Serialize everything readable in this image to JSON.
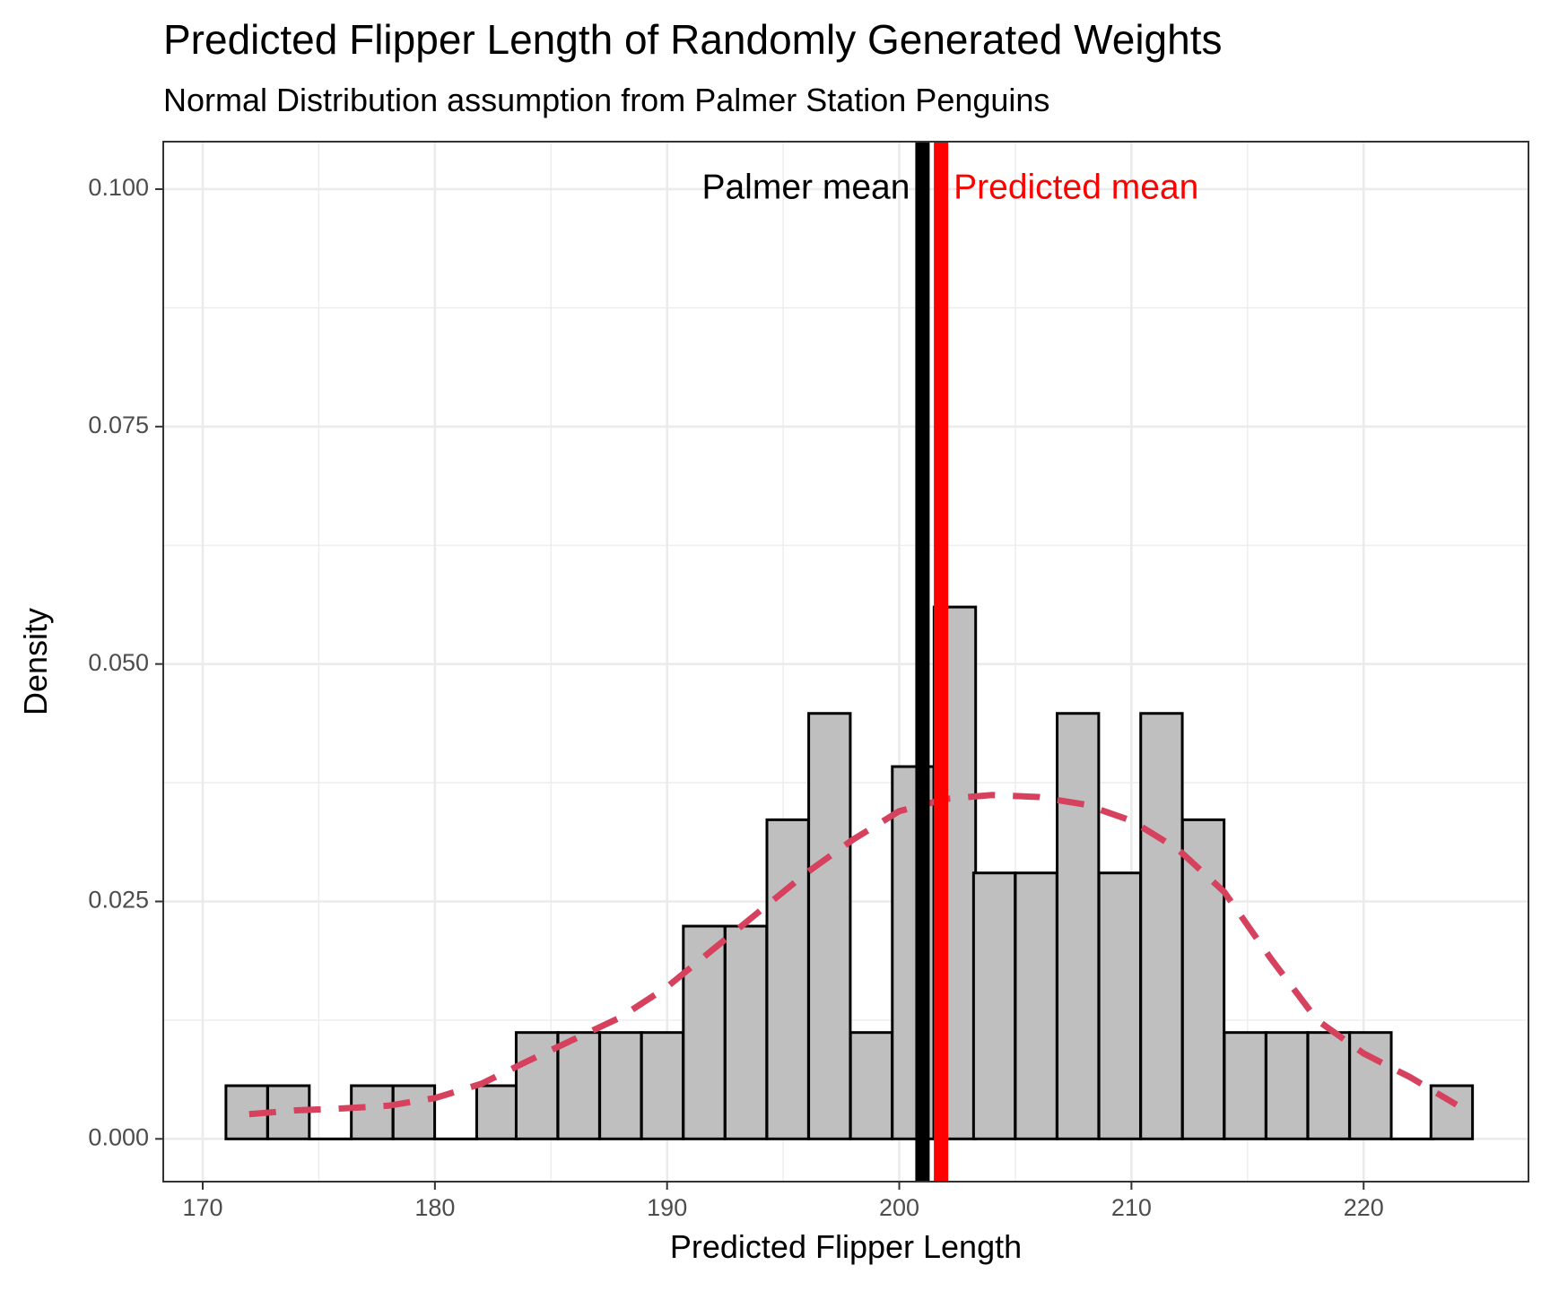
{
  "chart_data": {
    "type": "bar",
    "title": "Predicted Flipper Length of Randomly Generated Weights",
    "subtitle": "Normal Distribution assumption from Palmer Station Penguins",
    "xlabel": "Predicted Flipper Length",
    "ylabel": "Density",
    "xlim": [
      168.3,
      227.1
    ],
    "ylim": [
      -0.0045,
      0.105
    ],
    "x_ticks": [
      170,
      180,
      190,
      200,
      210,
      220
    ],
    "x_tick_labels": [
      "170",
      "180",
      "190",
      "200",
      "210",
      "220"
    ],
    "y_ticks": [
      0,
      0.025,
      0.05,
      0.075,
      0.1
    ],
    "y_tick_labels": [
      "0.000",
      "0.025",
      "0.050",
      "0.075",
      "0.100"
    ],
    "grid": true,
    "bin_width": 1.79,
    "bins": [
      {
        "x0": 171.0,
        "density": 0.0056
      },
      {
        "x0": 172.8,
        "density": 0.0056
      },
      {
        "x0": 174.6,
        "density": 0.0
      },
      {
        "x0": 176.4,
        "density": 0.0056
      },
      {
        "x0": 178.2,
        "density": 0.0056
      },
      {
        "x0": 180.0,
        "density": 0.0
      },
      {
        "x0": 181.8,
        "density": 0.0056
      },
      {
        "x0": 183.5,
        "density": 0.0112
      },
      {
        "x0": 185.3,
        "density": 0.0112
      },
      {
        "x0": 187.1,
        "density": 0.0112
      },
      {
        "x0": 188.9,
        "density": 0.0112
      },
      {
        "x0": 190.7,
        "density": 0.0224
      },
      {
        "x0": 192.5,
        "density": 0.0224
      },
      {
        "x0": 194.3,
        "density": 0.0336
      },
      {
        "x0": 196.1,
        "density": 0.0448
      },
      {
        "x0": 197.9,
        "density": 0.0112
      },
      {
        "x0": 199.7,
        "density": 0.0392
      },
      {
        "x0": 201.5,
        "density": 0.056
      },
      {
        "x0": 203.2,
        "density": 0.028
      },
      {
        "x0": 205.0,
        "density": 0.028
      },
      {
        "x0": 206.8,
        "density": 0.0448
      },
      {
        "x0": 208.6,
        "density": 0.028
      },
      {
        "x0": 210.4,
        "density": 0.0448
      },
      {
        "x0": 212.2,
        "density": 0.0336
      },
      {
        "x0": 214.0,
        "density": 0.0112
      },
      {
        "x0": 215.8,
        "density": 0.0112
      },
      {
        "x0": 217.6,
        "density": 0.0112
      },
      {
        "x0": 219.4,
        "density": 0.0112
      },
      {
        "x0": 221.2,
        "density": 0.0
      },
      {
        "x0": 222.9,
        "density": 0.0056
      }
    ],
    "density_curve": {
      "x": [
        172.0,
        174.0,
        176.0,
        178.0,
        180.0,
        182.0,
        184.0,
        186.0,
        188.0,
        190.0,
        192.0,
        194.0,
        196.0,
        198.0,
        200.0,
        202.0,
        204.0,
        206.0,
        208.0,
        210.0,
        212.0,
        214.0,
        216.0,
        218.0,
        220.0,
        222.0,
        224.0
      ],
      "y": [
        0.0026,
        0.003,
        0.0032,
        0.0035,
        0.0043,
        0.0058,
        0.0082,
        0.0105,
        0.0128,
        0.016,
        0.02,
        0.024,
        0.028,
        0.0315,
        0.0345,
        0.0358,
        0.0362,
        0.036,
        0.0352,
        0.0335,
        0.0305,
        0.026,
        0.019,
        0.0125,
        0.009,
        0.0065,
        0.0036
      ],
      "color": "#d6415e",
      "style": "dashed"
    },
    "reference_lines": [
      {
        "label": "Palmer mean",
        "x": 201.0,
        "color": "#000000"
      },
      {
        "label": "Predicted mean",
        "x": 201.8,
        "color": "#ff0000"
      }
    ],
    "bar_fill": "#bfbfbf",
    "bar_stroke": "#000000"
  }
}
